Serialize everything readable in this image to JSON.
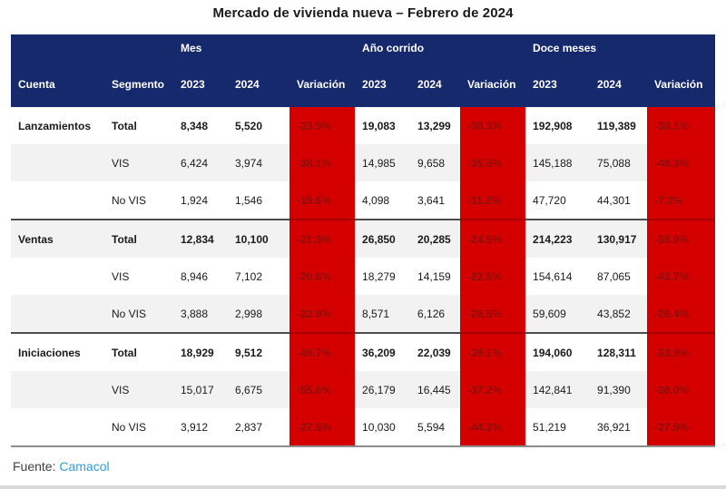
{
  "title": "Mercado de vivienda nueva – Febrero de 2024",
  "table": {
    "group_headers": [
      "Mes",
      "Año corrido",
      "Doce meses"
    ],
    "col_headers": {
      "cuenta": "Cuenta",
      "segmento": "Segmento",
      "y2023": "2023",
      "y2024": "2024",
      "variacion": "Variación"
    },
    "sections": [
      {
        "cuenta": "Lanzamientos",
        "rows": [
          {
            "segmento": "Total",
            "mes": [
              "8,348",
              "5,520",
              "-33.9%"
            ],
            "anio": [
              "19,083",
              "13,299",
              "-30.3%"
            ],
            "doce": [
              "192,908",
              "119,389",
              "-38.1%"
            ]
          },
          {
            "segmento": "VIS",
            "mes": [
              "6,424",
              "3,974",
              "-38.1%"
            ],
            "anio": [
              "14,985",
              "9,658",
              "-35.5%"
            ],
            "doce": [
              "145,188",
              "75,088",
              "-48.3%"
            ]
          },
          {
            "segmento": "No VIS",
            "mes": [
              "1,924",
              "1,546",
              "-19.6%"
            ],
            "anio": [
              "4,098",
              "3,641",
              "-11.2%"
            ],
            "doce": [
              "47,720",
              "44,301",
              "-7.2%"
            ]
          }
        ]
      },
      {
        "cuenta": "Ventas",
        "rows": [
          {
            "segmento": "Total",
            "mes": [
              "12,834",
              "10,100",
              "-21.3%"
            ],
            "anio": [
              "26,850",
              "20,285",
              "-24.5%"
            ],
            "doce": [
              "214,223",
              "130,917",
              "-38.9%"
            ]
          },
          {
            "segmento": "VIS",
            "mes": [
              "8,946",
              "7,102",
              "-20.6%"
            ],
            "anio": [
              "18,279",
              "14,159",
              "-22.5%"
            ],
            "doce": [
              "154,614",
              "87,065",
              "-43.7%"
            ]
          },
          {
            "segmento": "No VIS",
            "mes": [
              "3,888",
              "2,998",
              "-22.9%"
            ],
            "anio": [
              "8,571",
              "6,126",
              "-28.5%"
            ],
            "doce": [
              "59,609",
              "43,852",
              "-26.4%"
            ]
          }
        ]
      },
      {
        "cuenta": "Iniciaciones",
        "rows": [
          {
            "segmento": "Total",
            "mes": [
              "18,929",
              "9,512",
              "-49.7%"
            ],
            "anio": [
              "36,209",
              "22,039",
              "-39.1%"
            ],
            "doce": [
              "194,060",
              "128,311",
              "-33.9%"
            ]
          },
          {
            "segmento": "VIS",
            "mes": [
              "15,017",
              "6,675",
              "-55.6%"
            ],
            "anio": [
              "26,179",
              "16,445",
              "-37.2%"
            ],
            "doce": [
              "142,841",
              "91,390",
              "-36.0%"
            ]
          },
          {
            "segmento": "No VIS",
            "mes": [
              "3,912",
              "2,837",
              "-27.5%"
            ],
            "anio": [
              "10,030",
              "5,594",
              "-44.2%"
            ],
            "doce": [
              "51,219",
              "36,921",
              "-27.9%"
            ]
          }
        ]
      }
    ]
  },
  "footer": {
    "label": "Fuente:",
    "link": "Camacol"
  },
  "colors": {
    "header_navy": "#16296d",
    "variation_bg": "#d40000",
    "variation_text": "#8a0f0f",
    "alt_row": "#f2f2f2",
    "link_blue": "#2e9fd6",
    "separator": "#4d4d4d",
    "bottom_border": "#8c8c8c"
  },
  "chart_data": {
    "type": "table",
    "title": "Mercado de vivienda nueva – Febrero de 2024",
    "column_groups": [
      "Mes",
      "Año corrido",
      "Doce meses"
    ],
    "columns": [
      "Cuenta",
      "Segmento",
      "Mes 2023",
      "Mes 2024",
      "Mes Variación",
      "Año corrido 2023",
      "Año corrido 2024",
      "Año corrido Variación",
      "Doce meses 2023",
      "Doce meses 2024",
      "Doce meses Variación"
    ],
    "rows": [
      [
        "Lanzamientos",
        "Total",
        8348,
        5520,
        "-33.9%",
        19083,
        13299,
        "-30.3%",
        192908,
        119389,
        "-38.1%"
      ],
      [
        "Lanzamientos",
        "VIS",
        6424,
        3974,
        "-38.1%",
        14985,
        9658,
        "-35.5%",
        145188,
        75088,
        "-48.3%"
      ],
      [
        "Lanzamientos",
        "No VIS",
        1924,
        1546,
        "-19.6%",
        4098,
        3641,
        "-11.2%",
        47720,
        44301,
        "-7.2%"
      ],
      [
        "Ventas",
        "Total",
        12834,
        10100,
        "-21.3%",
        26850,
        20285,
        "-24.5%",
        214223,
        130917,
        "-38.9%"
      ],
      [
        "Ventas",
        "VIS",
        8946,
        7102,
        "-20.6%",
        18279,
        14159,
        "-22.5%",
        154614,
        87065,
        "-43.7%"
      ],
      [
        "Ventas",
        "No VIS",
        3888,
        2998,
        "-22.9%",
        8571,
        6126,
        "-28.5%",
        59609,
        43852,
        "-26.4%"
      ],
      [
        "Iniciaciones",
        "Total",
        18929,
        9512,
        "-49.7%",
        36209,
        22039,
        "-39.1%",
        194060,
        128311,
        "-33.9%"
      ],
      [
        "Iniciaciones",
        "VIS",
        15017,
        6675,
        "-55.6%",
        26179,
        16445,
        "-37.2%",
        142841,
        91390,
        "-36.0%"
      ],
      [
        "Iniciaciones",
        "No VIS",
        3912,
        2837,
        "-27.5%",
        10030,
        5594,
        "-44.2%",
        51219,
        36921,
        "-27.9%"
      ]
    ],
    "source": "Fuente: Camacol"
  }
}
